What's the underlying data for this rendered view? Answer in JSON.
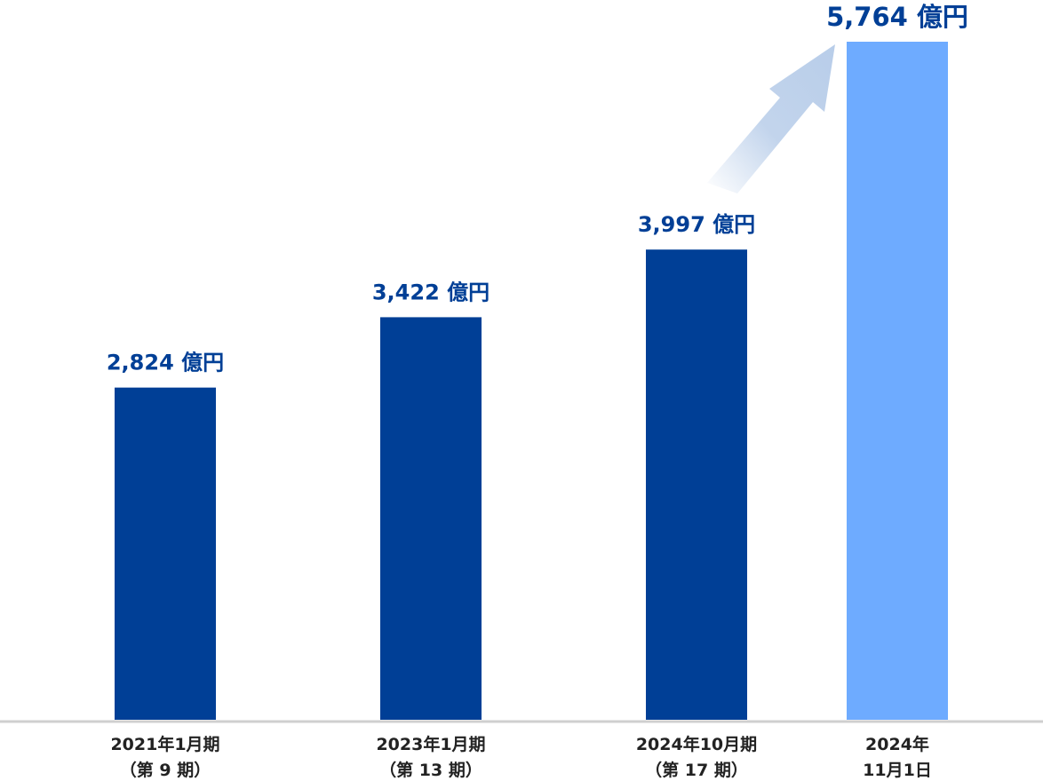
{
  "chart_data": {
    "type": "bar",
    "unit": "億円",
    "categories": [
      [
        "2021年1月期",
        "（第 9 期）"
      ],
      [
        "2023年1月期",
        "（第 13 期）"
      ],
      [
        "2024年10月期",
        "（第 17 期）"
      ],
      [
        "2024年",
        "11月1日"
      ]
    ],
    "values": [
      2824,
      3422,
      3997,
      5764
    ],
    "value_labels": [
      "2,824 億円",
      "3,422 億円",
      "3,997 億円",
      "5,764 億円"
    ],
    "highlight_index": 3,
    "ylim": [
      0,
      5764
    ],
    "grid": false,
    "annotation": "arrow pointing to highlighted bar"
  },
  "colors": {
    "bar": "#003f96",
    "bar_highlight": "#6eabff",
    "label": "#003f96",
    "arrow": "#b8cde9",
    "axis": "#cfcfcf",
    "category_text": "#222222"
  }
}
